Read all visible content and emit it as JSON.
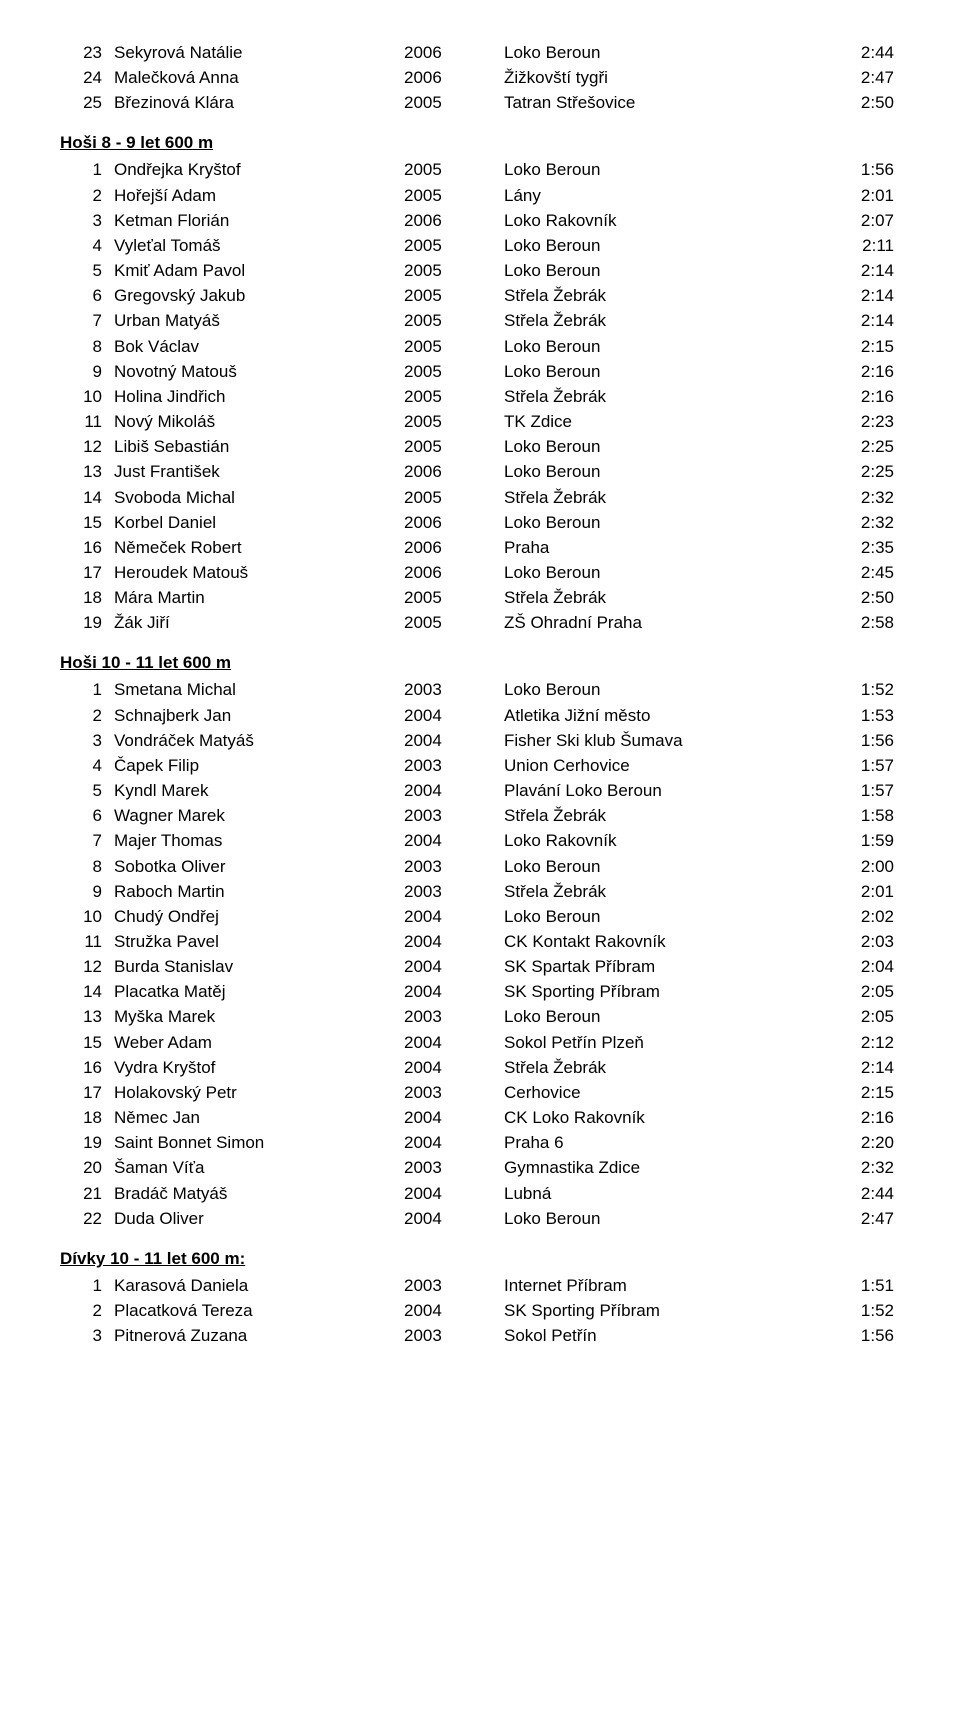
{
  "sections": [
    {
      "heading": null,
      "rows": [
        {
          "rank": "23",
          "name": "Sekyrová Natálie",
          "year": "2006",
          "club": "Loko Beroun",
          "time": "2:44"
        },
        {
          "rank": "24",
          "name": "Malečková Anna",
          "year": "2006",
          "club": "Žižkovští tygři",
          "time": "2:47"
        },
        {
          "rank": "25",
          "name": "Březinová Klára",
          "year": "2005",
          "club": "Tatran Střešovice",
          "time": "2:50"
        }
      ]
    },
    {
      "heading": "Hoši 8 - 9 let 600 m",
      "rows": [
        {
          "rank": "1",
          "name": "Ondřejka Kryštof",
          "year": "2005",
          "club": "Loko Beroun",
          "time": "1:56"
        },
        {
          "rank": "2",
          "name": "Hořejší Adam",
          "year": "2005",
          "club": "Lány",
          "time": "2:01"
        },
        {
          "rank": "3",
          "name": "Ketman Florián",
          "year": "2006",
          "club": "Loko Rakovník",
          "time": "2:07"
        },
        {
          "rank": "4",
          "name": "Vyleťal Tomáš",
          "year": "2005",
          "club": "Loko Beroun",
          "time": "2:11"
        },
        {
          "rank": "5",
          "name": "Kmiť Adam Pavol",
          "year": "2005",
          "club": "Loko Beroun",
          "time": "2:14"
        },
        {
          "rank": "6",
          "name": "Gregovský Jakub",
          "year": "2005",
          "club": "Střela Žebrák",
          "time": "2:14"
        },
        {
          "rank": "7",
          "name": "Urban Matyáš",
          "year": "2005",
          "club": "Střela Žebrák",
          "time": "2:14"
        },
        {
          "rank": "8",
          "name": "Bok Václav",
          "year": "2005",
          "club": "Loko Beroun",
          "time": "2:15"
        },
        {
          "rank": "9",
          "name": "Novotný Matouš",
          "year": "2005",
          "club": "Loko Beroun",
          "time": "2:16"
        },
        {
          "rank": "10",
          "name": "Holina Jindřich",
          "year": "2005",
          "club": "Střela Žebrák",
          "time": "2:16"
        },
        {
          "rank": "11",
          "name": "Nový Mikoláš",
          "year": "2005",
          "club": "TK Zdice",
          "time": "2:23"
        },
        {
          "rank": "12",
          "name": "Libiš Sebastián",
          "year": "2005",
          "club": "Loko Beroun",
          "time": "2:25"
        },
        {
          "rank": "13",
          "name": "Just František",
          "year": "2006",
          "club": "Loko Beroun",
          "time": "2:25"
        },
        {
          "rank": "14",
          "name": "Svoboda Michal",
          "year": "2005",
          "club": "Střela Žebrák",
          "time": "2:32"
        },
        {
          "rank": "15",
          "name": "Korbel Daniel",
          "year": "2006",
          "club": "Loko Beroun",
          "time": "2:32"
        },
        {
          "rank": "16",
          "name": "Němeček Robert",
          "year": "2006",
          "club": "Praha",
          "time": "2:35"
        },
        {
          "rank": "17",
          "name": "Heroudek Matouš",
          "year": "2006",
          "club": "Loko Beroun",
          "time": "2:45"
        },
        {
          "rank": "18",
          "name": "Mára Martin",
          "year": "2005",
          "club": "Střela Žebrák",
          "time": "2:50"
        },
        {
          "rank": "19",
          "name": "Žák Jiří",
          "year": "2005",
          "club": "ZŠ Ohradní Praha",
          "time": "2:58"
        }
      ]
    },
    {
      "heading": "Hoši 10 - 11 let 600 m",
      "rows": [
        {
          "rank": "1",
          "name": "Smetana Michal",
          "year": "2003",
          "club": "Loko Beroun",
          "time": "1:52"
        },
        {
          "rank": "2",
          "name": "Schnajberk Jan",
          "year": "2004",
          "club": "Atletika Jižní město",
          "time": "1:53"
        },
        {
          "rank": "3",
          "name": "Vondráček Matyáš",
          "year": "2004",
          "club": "Fisher Ski klub Šumava",
          "time": "1:56"
        },
        {
          "rank": "4",
          "name": "Čapek Filip",
          "year": "2003",
          "club": "Union Cerhovice",
          "time": "1:57"
        },
        {
          "rank": "5",
          "name": "Kyndl Marek",
          "year": "2004",
          "club": "Plavání Loko Beroun",
          "time": "1:57"
        },
        {
          "rank": "6",
          "name": "Wagner Marek",
          "year": "2003",
          "club": "Střela Žebrák",
          "time": "1:58"
        },
        {
          "rank": "7",
          "name": "Majer Thomas",
          "year": "2004",
          "club": "Loko Rakovník",
          "time": "1:59"
        },
        {
          "rank": "8",
          "name": "Sobotka Oliver",
          "year": "2003",
          "club": "Loko Beroun",
          "time": "2:00"
        },
        {
          "rank": "9",
          "name": "Raboch Martin",
          "year": "2003",
          "club": "Střela Žebrák",
          "time": "2:01"
        },
        {
          "rank": "10",
          "name": "Chudý Ondřej",
          "year": "2004",
          "club": "Loko Beroun",
          "time": "2:02"
        },
        {
          "rank": "11",
          "name": "Stružka Pavel",
          "year": "2004",
          "club": "CK Kontakt Rakovník",
          "time": "2:03"
        },
        {
          "rank": "12",
          "name": "Burda Stanislav",
          "year": "2004",
          "club": "SK Spartak Příbram",
          "time": "2:04"
        },
        {
          "rank": "14",
          "name": "Placatka Matěj",
          "year": "2004",
          "club": "SK Sporting Příbram",
          "time": "2:05"
        },
        {
          "rank": "13",
          "name": "Myška Marek",
          "year": "2003",
          "club": "Loko Beroun",
          "time": "2:05"
        },
        {
          "rank": "15",
          "name": "Weber Adam",
          "year": "2004",
          "club": "Sokol Petřín Plzeň",
          "time": "2:12"
        },
        {
          "rank": "16",
          "name": "Vydra Kryštof",
          "year": "2004",
          "club": "Střela Žebrák",
          "time": "2:14"
        },
        {
          "rank": "17",
          "name": "Holakovský Petr",
          "year": "2003",
          "club": "Cerhovice",
          "time": "2:15"
        },
        {
          "rank": "18",
          "name": "Němec Jan",
          "year": "2004",
          "club": "CK Loko Rakovník",
          "time": "2:16"
        },
        {
          "rank": "19",
          "name": "Saint Bonnet Simon",
          "year": "2004",
          "club": "Praha 6",
          "time": "2:20"
        },
        {
          "rank": "20",
          "name": "Šaman Víťa",
          "year": "2003",
          "club": "Gymnastika Zdice",
          "time": "2:32"
        },
        {
          "rank": "21",
          "name": "Bradáč Matyáš",
          "year": "2004",
          "club": "Lubná",
          "time": "2:44"
        },
        {
          "rank": "22",
          "name": "Duda Oliver",
          "year": "2004",
          "club": "Loko Beroun",
          "time": "2:47"
        }
      ]
    },
    {
      "heading": "Dívky 10 - 11 let 600 m:",
      "rows": [
        {
          "rank": "1",
          "name": "Karasová Daniela",
          "year": "2003",
          "club": "Internet Příbram",
          "time": "1:51"
        },
        {
          "rank": "2",
          "name": "Placatková Tereza",
          "year": "2004",
          "club": "SK Sporting Příbram",
          "time": "1:52"
        },
        {
          "rank": "3",
          "name": "Pitnerová Zuzana",
          "year": "2003",
          "club": "Sokol Petřín",
          "time": "1:56"
        }
      ]
    }
  ]
}
